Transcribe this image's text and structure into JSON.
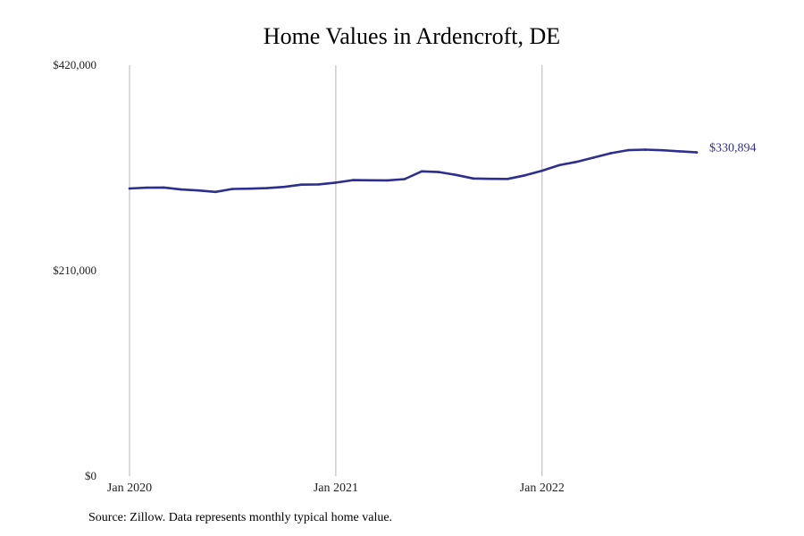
{
  "chart_data": {
    "type": "line",
    "title": "Home Values in Ardencroft, DE",
    "source": "Source: Zillow. Data represents monthly typical home value.",
    "ylim": [
      0,
      420000
    ],
    "y_ticks": [
      {
        "value": 0,
        "label": "$0"
      },
      {
        "value": 210000,
        "label": "$210,000"
      },
      {
        "value": 420000,
        "label": "$420,000"
      }
    ],
    "x_ticks": [
      {
        "index": 0,
        "label": "Jan 2020"
      },
      {
        "index": 12,
        "label": "Jan 2021"
      },
      {
        "index": 24,
        "label": "Jan 2022"
      }
    ],
    "x": [
      "2020-01",
      "2020-02",
      "2020-03",
      "2020-04",
      "2020-05",
      "2020-06",
      "2020-07",
      "2020-08",
      "2020-09",
      "2020-10",
      "2020-11",
      "2020-12",
      "2021-01",
      "2021-02",
      "2021-03",
      "2021-04",
      "2021-05",
      "2021-06",
      "2021-07",
      "2021-08",
      "2021-09",
      "2021-10",
      "2021-11",
      "2021-12",
      "2022-01",
      "2022-02",
      "2022-03",
      "2022-04",
      "2022-05",
      "2022-06",
      "2022-07",
      "2022-08",
      "2022-09",
      "2022-10"
    ],
    "series": [
      {
        "color": "#2e2e8f",
        "values": [
          294000,
          294800,
          295000,
          293000,
          292000,
          290500,
          293500,
          293800,
          294400,
          295600,
          297900,
          298200,
          300000,
          302600,
          302400,
          302300,
          303600,
          311500,
          310800,
          307900,
          304200,
          303900,
          303800,
          307400,
          312200,
          317800,
          321200,
          325600,
          330100,
          333200,
          333700,
          333100,
          332000,
          330894
        ],
        "end_label": "$330,894"
      }
    ],
    "grid": {
      "vertical_at_ticks": true,
      "horizontal": false
    }
  }
}
